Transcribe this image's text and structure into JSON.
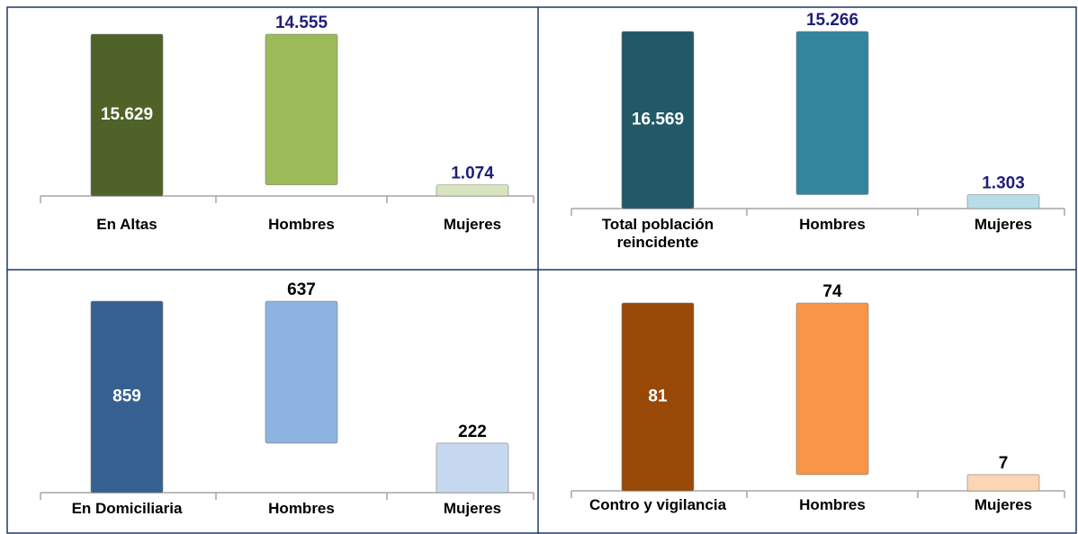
{
  "chart_data": [
    {
      "type": "waterfall",
      "categories": [
        "En Altas",
        "Hombres",
        "Mujeres"
      ],
      "values": [
        15629,
        14555,
        1074
      ],
      "value_labels": [
        "15.629",
        "14.555",
        "1.074"
      ],
      "colors": [
        "#4f6228",
        "#9bbb59",
        "#d7e4bd"
      ],
      "label_color": "#1f1f78"
    },
    {
      "type": "waterfall",
      "categories": [
        "Total población reincidente",
        "Hombres",
        "Mujeres"
      ],
      "values": [
        16569,
        15266,
        1303
      ],
      "value_labels": [
        "16.569",
        "15.266",
        "1.303"
      ],
      "colors": [
        "#215967",
        "#31859c",
        "#b7dee8"
      ],
      "label_color": "#1f1f78"
    },
    {
      "type": "waterfall",
      "categories": [
        "En Domiciliaria",
        "Hombres",
        "Mujeres"
      ],
      "values": [
        859,
        637,
        222
      ],
      "colors": [
        "#376092",
        "#8db3e2",
        "#c6d9f1"
      ],
      "label_color": "#000000"
    },
    {
      "type": "waterfall",
      "categories": [
        "Contro y vigilancia",
        "Hombres",
        "Mujeres"
      ],
      "values": [
        81,
        74,
        7
      ],
      "colors": [
        "#984807",
        "#f79646",
        "#fcd5b5"
      ],
      "label_color": "#000000"
    }
  ]
}
